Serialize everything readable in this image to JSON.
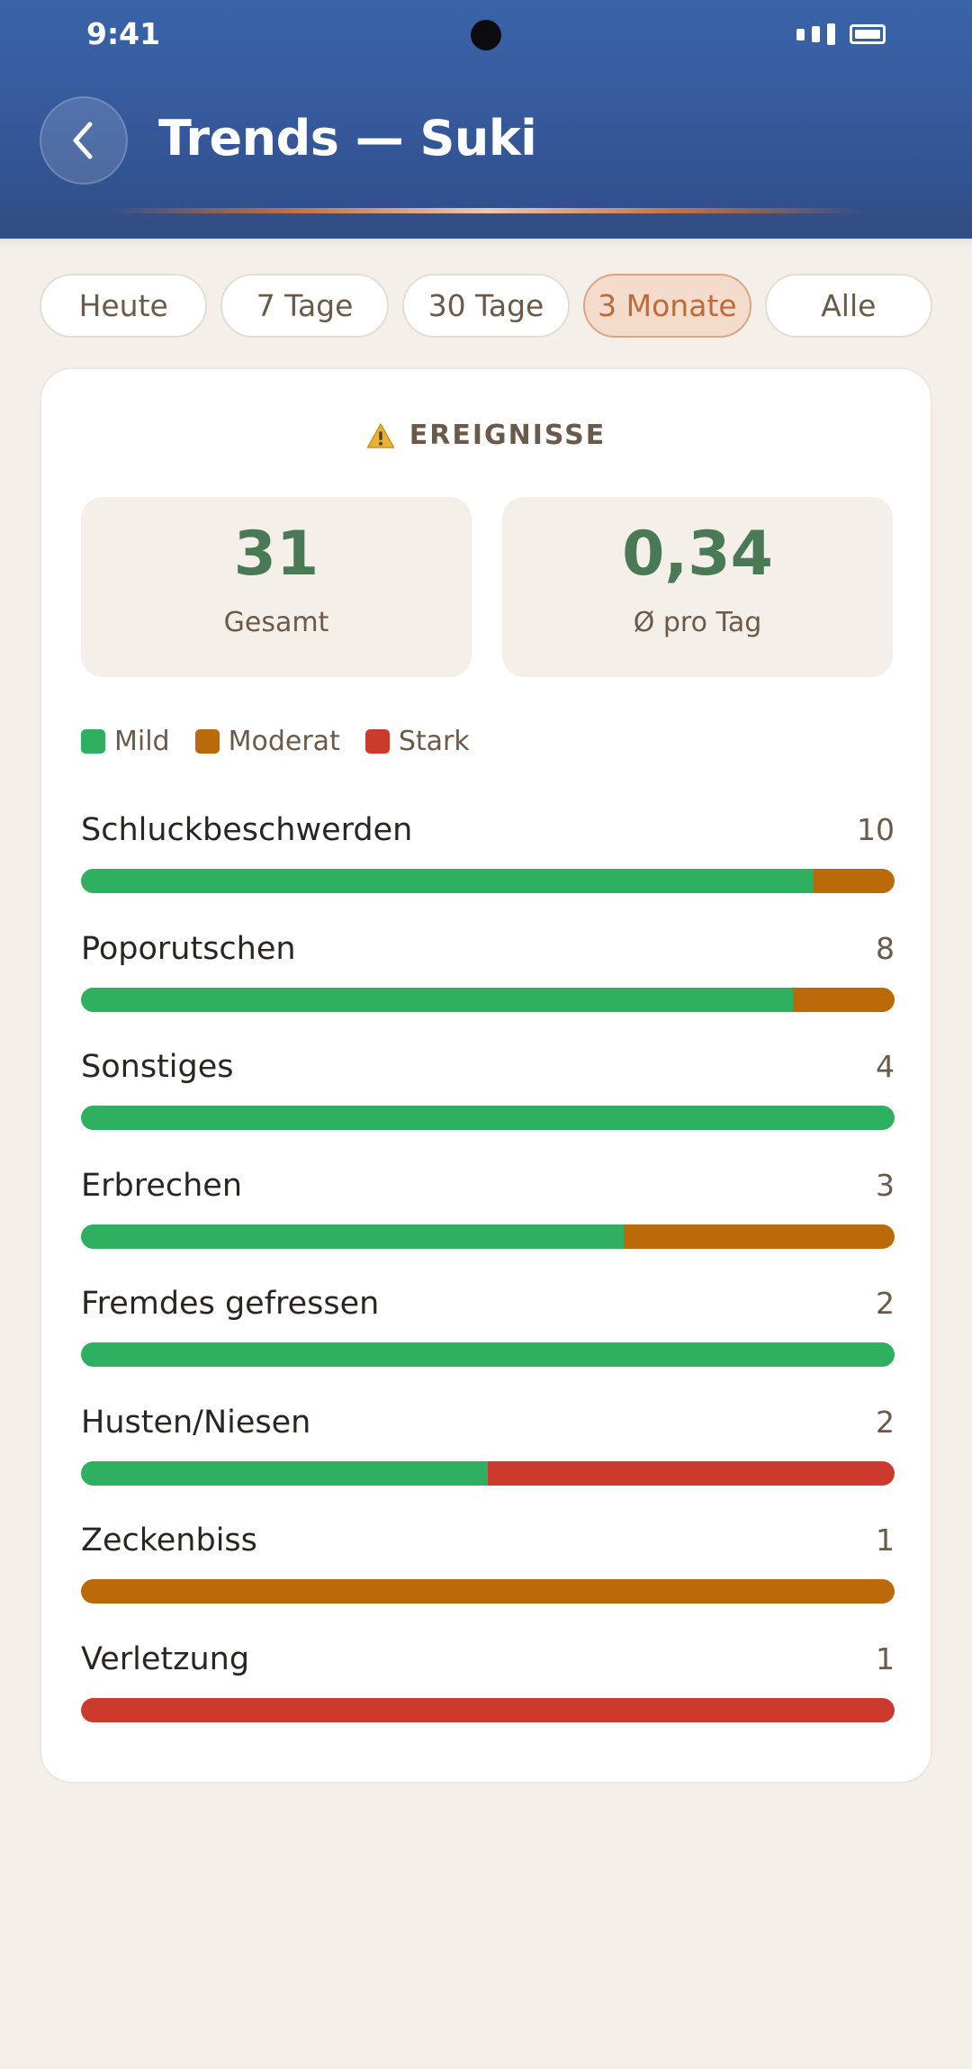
{
  "status": {
    "time": "9:41"
  },
  "header": {
    "title": "Trends — Suki"
  },
  "tabs": [
    {
      "label": "Heute",
      "active": false
    },
    {
      "label": "7 Tage",
      "active": false
    },
    {
      "label": "30 Tage",
      "active": false
    },
    {
      "label": "3 Monate",
      "active": true
    },
    {
      "label": "Alle",
      "active": false
    }
  ],
  "section": {
    "icon": "warning-icon",
    "title": "EREIGNISSE"
  },
  "stats": [
    {
      "value": "31",
      "label": "Gesamt"
    },
    {
      "value": "0,34",
      "label": "Ø pro Tag"
    }
  ],
  "legend": [
    {
      "label": "Mild",
      "color": "#2fb060"
    },
    {
      "label": "Moderat",
      "color": "#bb6a0a"
    },
    {
      "label": "Stark",
      "color": "#cc3a2e"
    }
  ],
  "events": [
    {
      "label": "Schluckbeschwerden",
      "count": "10",
      "mild": 9,
      "moderat": 1,
      "stark": 0
    },
    {
      "label": "Poporutschen",
      "count": "8",
      "mild": 7,
      "moderat": 1,
      "stark": 0
    },
    {
      "label": "Sonstiges",
      "count": "4",
      "mild": 4,
      "moderat": 0,
      "stark": 0
    },
    {
      "label": "Erbrechen",
      "count": "3",
      "mild": 2,
      "moderat": 1,
      "stark": 0
    },
    {
      "label": "Fremdes gefressen",
      "count": "2",
      "mild": 2,
      "moderat": 0,
      "stark": 0
    },
    {
      "label": "Husten/Niesen",
      "count": "2",
      "mild": 1,
      "moderat": 0,
      "stark": 1
    },
    {
      "label": "Zeckenbiss",
      "count": "1",
      "mild": 0,
      "moderat": 1,
      "stark": 0
    },
    {
      "label": "Verletzung",
      "count": "1",
      "mild": 0,
      "moderat": 0,
      "stark": 1
    }
  ]
}
